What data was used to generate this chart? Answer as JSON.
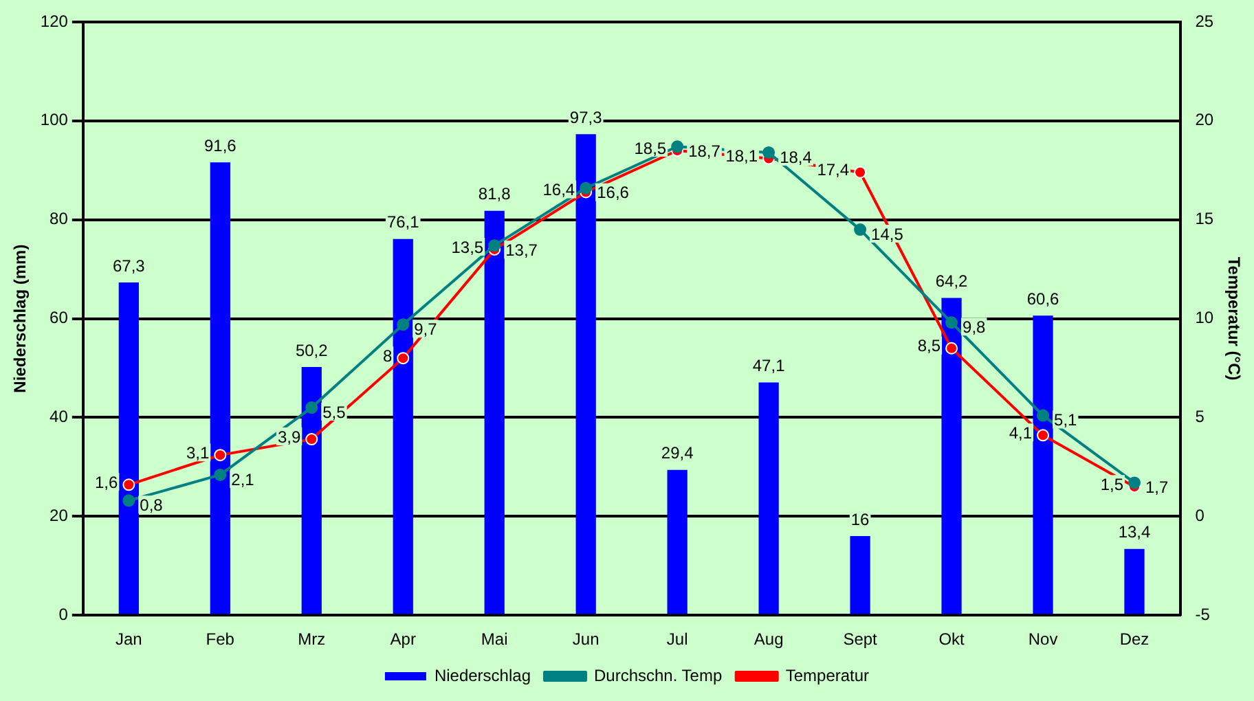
{
  "chart_data": {
    "type": "bar",
    "ylabel": "Niederschlag (mm)",
    "y2label": "Temperatur (°C)",
    "categories": [
      "Jan",
      "Feb",
      "Mrz",
      "Apr",
      "Mai",
      "Jun",
      "Jul",
      "Aug",
      "Sept",
      "Okt",
      "Nov",
      "Dez"
    ],
    "series": [
      {
        "name": "Niederschlag",
        "color": "#0000ff",
        "values": [
          67.3,
          91.6,
          50.2,
          76.1,
          81.8,
          97.3,
          29.4,
          47.1,
          16,
          64.2,
          60.6,
          13.4
        ],
        "value_labels": [
          "67,3",
          "91,6",
          "50,2",
          "76,1",
          "81,8",
          "97,3",
          "29,4",
          "47,1",
          "16",
          "64,2",
          "60,6",
          "13,4"
        ]
      },
      {
        "name": "Durchschn. Temp",
        "type": "line",
        "axis": "y2",
        "color": "#008080",
        "values": [
          0.8,
          2.1,
          5.5,
          9.7,
          13.7,
          16.6,
          18.7,
          18.4,
          14.5,
          9.8,
          5.1,
          1.7
        ],
        "value_labels": [
          "0,8",
          "2,1",
          "5,5",
          "9,7",
          "13,7",
          "16,6",
          "18,7",
          "18,4",
          "14,5",
          "9,8",
          "5,1",
          "1,7"
        ]
      },
      {
        "name": "Temperatur",
        "type": "line",
        "axis": "y2",
        "color": "#ff0000",
        "values": [
          1.6,
          3.1,
          3.9,
          8,
          13.5,
          16.4,
          18.5,
          18.1,
          17.4,
          8.5,
          4.1,
          1.5
        ],
        "value_labels": [
          "1,6",
          "3,1",
          "3,9",
          "8",
          "13,5",
          "16,4",
          "18,5",
          "18,1",
          "17,4",
          "8,5",
          "4,1",
          "1,5"
        ]
      }
    ],
    "ylim": [
      0,
      120
    ],
    "yticks": [
      0,
      20,
      40,
      60,
      80,
      100,
      120
    ],
    "y2lim": [
      -5,
      25
    ],
    "y2ticks": [
      -5,
      0,
      5,
      10,
      15,
      20,
      25
    ],
    "grid": "y",
    "legend": "bottom",
    "marker": "circle",
    "line_style": "solid"
  }
}
